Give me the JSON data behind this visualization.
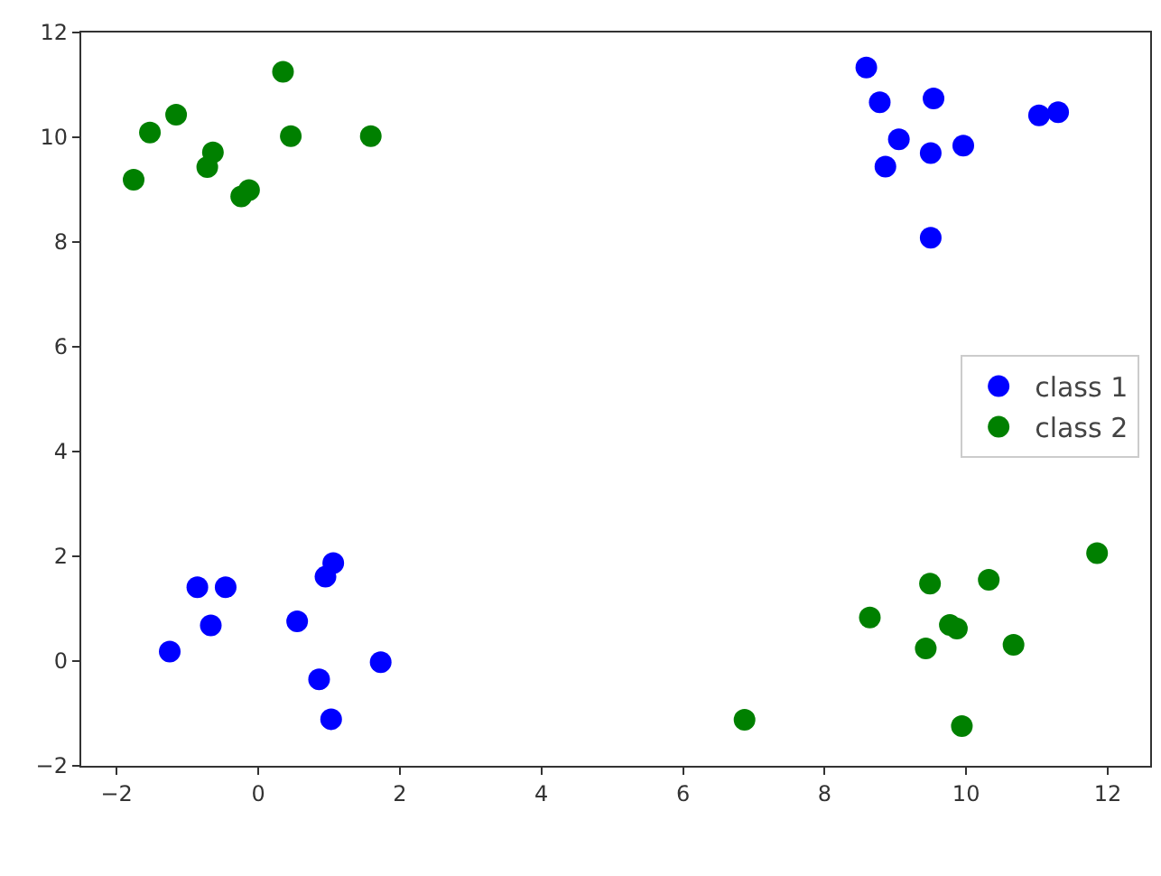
{
  "chart_data": {
    "type": "scatter",
    "marker": "circle",
    "grid": false,
    "legend": "right",
    "xlim": [
      -2.5,
      12.6
    ],
    "ylim": [
      -2,
      12
    ],
    "xticks": [
      -2,
      0,
      2,
      4,
      6,
      8,
      10,
      12
    ],
    "yticks": [
      -2,
      0,
      2,
      4,
      6,
      8,
      10,
      12
    ],
    "series": [
      {
        "name": "class 1",
        "color": "#0000ff",
        "x": [
          8.59,
          8.78,
          9.54,
          9.05,
          8.86,
          9.5,
          9.96,
          11.03,
          11.3,
          9.5,
          -1.25,
          -0.86,
          -0.46,
          -0.67,
          0.55,
          1.06,
          0.95,
          0.86,
          1.03,
          1.73
        ],
        "values": [
          11.33,
          10.67,
          10.74,
          9.96,
          9.44,
          9.7,
          9.84,
          10.42,
          10.48,
          8.08,
          0.18,
          1.41,
          1.41,
          0.68,
          0.76,
          1.87,
          1.61,
          -0.35,
          -1.11,
          -0.02
        ]
      },
      {
        "name": "class 2",
        "color": "#008000",
        "x": [
          -1.76,
          -1.53,
          -1.16,
          -0.64,
          -0.72,
          -0.24,
          -0.13,
          0.35,
          0.46,
          1.59,
          6.87,
          8.64,
          9.49,
          9.43,
          9.77,
          9.87,
          10.32,
          10.67,
          9.94,
          11.85
        ],
        "values": [
          9.19,
          10.09,
          10.43,
          9.71,
          9.43,
          8.87,
          8.99,
          11.25,
          10.02,
          10.02,
          -1.12,
          0.83,
          1.48,
          0.24,
          0.69,
          0.62,
          1.55,
          0.31,
          -1.24,
          2.06
        ]
      }
    ]
  }
}
